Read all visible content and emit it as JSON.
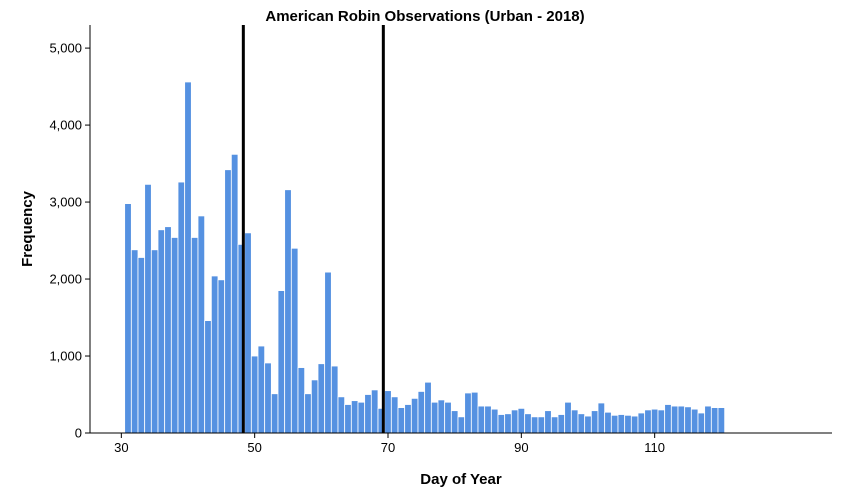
{
  "chart_data": {
    "type": "bar",
    "title": "American Robin Observations (Urban - 2018)",
    "xlabel": "Day of Year",
    "ylabel": "Frequency",
    "x_ticks": [
      30,
      50,
      70,
      90,
      110
    ],
    "x_tick_labels": [
      "30",
      "50",
      "70",
      "90",
      "110"
    ],
    "y_ticks": [
      0,
      1000,
      2000,
      3000,
      4000,
      5000
    ],
    "y_tick_labels": [
      "0",
      "1,000",
      "2,000",
      "3,000",
      "4,000",
      "5,000"
    ],
    "xlim": [
      25.3,
      136.6
    ],
    "ylim": [
      0,
      5300
    ],
    "bar_color": "#5591e1",
    "bar_edge_color": "#ffffff",
    "reference_lines": [
      48.3,
      69.3
    ],
    "reference_line_color": "#000000",
    "bin_width": 1,
    "x": [
      31,
      32,
      33,
      34,
      35,
      36,
      37,
      38,
      39,
      40,
      41,
      42,
      43,
      44,
      45,
      46,
      47,
      48,
      49,
      50,
      51,
      52,
      53,
      54,
      55,
      56,
      57,
      58,
      59,
      60,
      61,
      62,
      63,
      64,
      65,
      66,
      67,
      68,
      69,
      70,
      71,
      72,
      73,
      74,
      75,
      76,
      77,
      78,
      79,
      80,
      81,
      82,
      83,
      84,
      85,
      86,
      87,
      88,
      89,
      90,
      91,
      92,
      93,
      94,
      95,
      96,
      97,
      98,
      99,
      100,
      101,
      102,
      103,
      104,
      105,
      106,
      107,
      108,
      109,
      110,
      111,
      112,
      113,
      114,
      115,
      116,
      117,
      118,
      119,
      120
    ],
    "values": [
      2980,
      2380,
      2280,
      3230,
      2380,
      2640,
      2680,
      2540,
      3260,
      4560,
      2540,
      2820,
      1460,
      2040,
      1990,
      3420,
      3620,
      2450,
      2600,
      1000,
      1130,
      910,
      510,
      1850,
      3160,
      2400,
      850,
      510,
      690,
      900,
      2090,
      870,
      470,
      370,
      420,
      400,
      500,
      560,
      320,
      550,
      470,
      330,
      370,
      450,
      540,
      660,
      400,
      430,
      400,
      290,
      210,
      520,
      530,
      350,
      350,
      310,
      240,
      250,
      300,
      320,
      250,
      210,
      210,
      290,
      210,
      240,
      400,
      300,
      250,
      220,
      290,
      390,
      270,
      230,
      240,
      230,
      220,
      260,
      300,
      310,
      300,
      370,
      350,
      350,
      340,
      310,
      260,
      350,
      330,
      330
    ]
  }
}
